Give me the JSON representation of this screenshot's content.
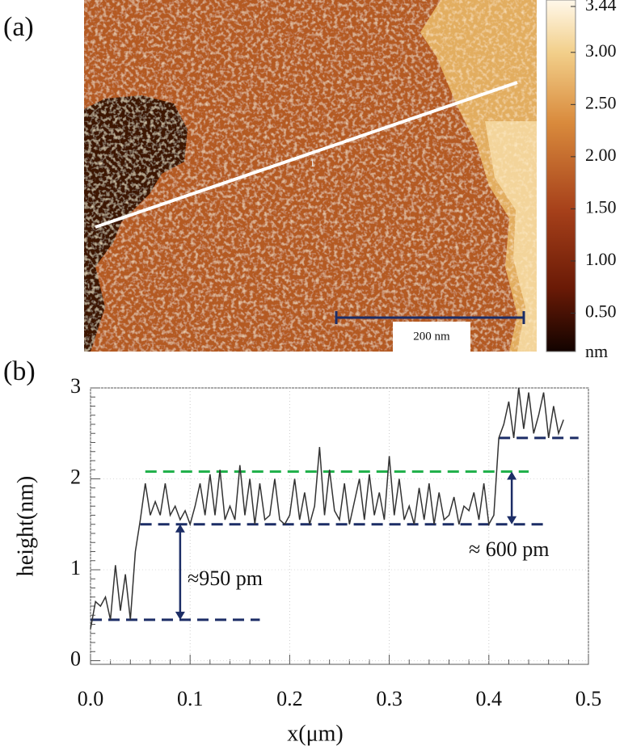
{
  "panel_a": {
    "label": "(a)",
    "profile_label": "1",
    "scalebar_label": "200 nm",
    "colorbar": {
      "lim": [
        0,
        3.44
      ],
      "unit": "nm",
      "ticks": [
        {
          "value": 3.44,
          "label": "3.44"
        },
        {
          "value": 3,
          "label": "3.00"
        },
        {
          "value": 2.5,
          "label": "2.50"
        },
        {
          "value": 2,
          "label": "2.00"
        },
        {
          "value": 1.5,
          "label": "1.50"
        },
        {
          "value": 1,
          "label": "1.00"
        },
        {
          "value": 0.5,
          "label": "0.50"
        }
      ]
    }
  },
  "chart_data": {
    "type": "line",
    "label": "(b)",
    "xlabel": "x(μm)",
    "ylabel": "height(nm)",
    "xlim": [
      0,
      0.5
    ],
    "ylim": [
      -0.04,
      3
    ],
    "xticks": [
      {
        "value": 0,
        "label": "0.0"
      },
      {
        "value": 0.1,
        "label": "0.1"
      },
      {
        "value": 0.2,
        "label": "0.2"
      },
      {
        "value": 0.3,
        "label": "0.3"
      },
      {
        "value": 0.4,
        "label": "0.4"
      },
      {
        "value": 0.5,
        "label": "0.5"
      }
    ],
    "yticks": [
      0,
      1,
      2,
      3
    ],
    "grid": true,
    "series": [
      {
        "color": "#333333",
        "x": [
          0,
          0.005,
          0.01,
          0.015,
          0.02,
          0.025,
          0.03,
          0.035,
          0.04,
          0.045,
          0.05,
          0.055,
          0.06,
          0.065,
          0.07,
          0.075,
          0.08,
          0.085,
          0.09,
          0.095,
          0.1,
          0.105,
          0.11,
          0.115,
          0.12,
          0.125,
          0.13,
          0.135,
          0.14,
          0.145,
          0.15,
          0.155,
          0.16,
          0.165,
          0.17,
          0.175,
          0.18,
          0.185,
          0.19,
          0.195,
          0.2,
          0.205,
          0.21,
          0.215,
          0.22,
          0.225,
          0.23,
          0.235,
          0.24,
          0.245,
          0.25,
          0.255,
          0.26,
          0.265,
          0.27,
          0.275,
          0.28,
          0.285,
          0.29,
          0.295,
          0.3,
          0.305,
          0.31,
          0.315,
          0.32,
          0.325,
          0.33,
          0.335,
          0.34,
          0.345,
          0.35,
          0.355,
          0.36,
          0.365,
          0.37,
          0.375,
          0.38,
          0.385,
          0.39,
          0.395,
          0.4,
          0.405,
          0.41,
          0.415,
          0.42,
          0.425,
          0.43,
          0.435,
          0.44,
          0.445,
          0.45,
          0.455,
          0.46,
          0.465,
          0.47,
          0.475
        ],
        "values": [
          0.35,
          0.65,
          0.6,
          0.7,
          0.45,
          1.05,
          0.55,
          0.95,
          0.45,
          1.2,
          1.55,
          1.95,
          1.6,
          1.75,
          1.6,
          1.95,
          1.6,
          1.7,
          1.55,
          1.65,
          1.5,
          1.7,
          1.95,
          1.6,
          2.05,
          1.6,
          2.1,
          1.55,
          1.7,
          1.55,
          2.15,
          1.6,
          2.0,
          1.5,
          1.95,
          1.55,
          1.6,
          2.0,
          1.55,
          1.5,
          1.6,
          2.0,
          1.55,
          1.85,
          1.5,
          1.7,
          2.35,
          1.6,
          2.1,
          1.65,
          1.55,
          1.95,
          1.5,
          1.75,
          2.0,
          1.55,
          2.05,
          1.6,
          1.85,
          1.55,
          2.25,
          1.6,
          2.0,
          1.55,
          1.7,
          1.5,
          1.9,
          1.55,
          1.95,
          1.5,
          1.85,
          1.55,
          1.6,
          1.8,
          1.5,
          1.7,
          1.65,
          1.85,
          1.55,
          1.95,
          1.5,
          1.6,
          2.45,
          2.6,
          2.85,
          2.45,
          3.0,
          2.55,
          2.95,
          2.5,
          2.7,
          2.95,
          2.45,
          2.8,
          2.5,
          2.65
        ]
      }
    ],
    "levels": [
      {
        "y": 0.45,
        "x": [
          0,
          0.17
        ],
        "color": "#1c2d66"
      },
      {
        "y": 1.5,
        "x": [
          0.05,
          0.46
        ],
        "color": "#1c2d66"
      },
      {
        "y": 2.08,
        "x": [
          0.055,
          0.44
        ],
        "color": "#22b14c"
      },
      {
        "y": 2.45,
        "x": [
          0.41,
          0.49
        ],
        "color": "#1c2d66"
      }
    ],
    "steps": [
      {
        "label": "≈950 pm",
        "x": 0.09,
        "from": 0.45,
        "to": 1.5,
        "color": "#1c2d66"
      },
      {
        "label": "≈ 600 pm",
        "x": 0.423,
        "from": 1.5,
        "to": 2.08,
        "color": "#1c2d66"
      }
    ]
  }
}
